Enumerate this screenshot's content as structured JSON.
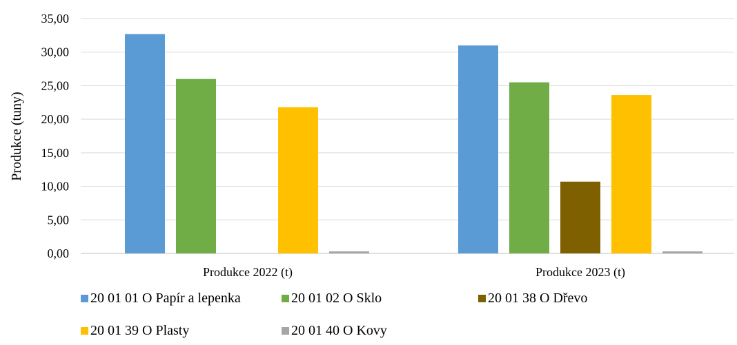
{
  "chart_data": {
    "type": "bar",
    "categories": [
      "Produkce 2022 (t)",
      "Produkce 2023 (t)"
    ],
    "ylabel": "Produkce (tuny)",
    "ylim": [
      0,
      35
    ],
    "ytick_labels": [
      "0,00",
      "5,00",
      "10,00",
      "15,00",
      "20,00",
      "25,00",
      "30,00",
      "35,00"
    ],
    "grid": true,
    "legend_position": "bottom",
    "series": [
      {
        "name": "20 01 01 O Papír a lepenka",
        "color": "#5B9BD5",
        "values": [
          32.7,
          31.0
        ]
      },
      {
        "name": "20 01 02 O Sklo",
        "color": "#70AD47",
        "values": [
          26.0,
          25.5
        ]
      },
      {
        "name": "20 01 38 O Dřevo",
        "color": "#7F6000",
        "values": [
          0,
          10.7
        ]
      },
      {
        "name": "20 01 39 O Plasty",
        "color": "#FFC000",
        "values": [
          21.8,
          23.6
        ]
      },
      {
        "name": "20 01 40 O Kovy",
        "color": "#A5A5A5",
        "values": [
          0.3,
          0.3
        ]
      }
    ]
  }
}
